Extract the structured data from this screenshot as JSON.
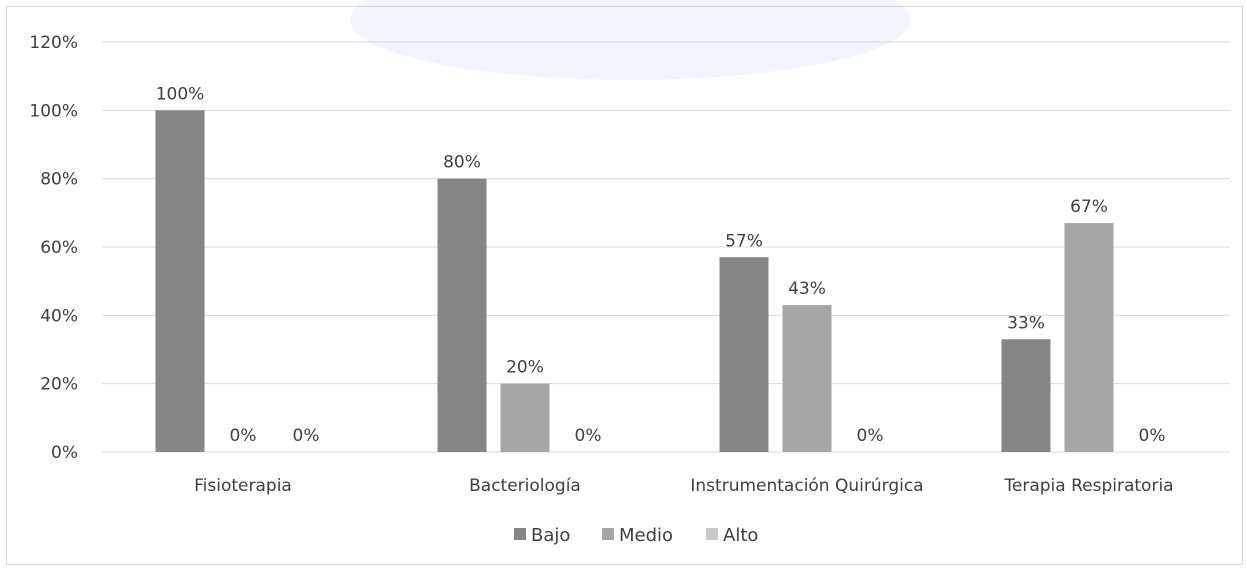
{
  "chart_data": {
    "type": "bar",
    "title": "",
    "xlabel": "",
    "ylabel": "",
    "ylim": [
      0,
      120
    ],
    "y_ticks": [
      "0%",
      "20%",
      "40%",
      "60%",
      "80%",
      "100%",
      "120%"
    ],
    "y_tick_values": [
      0,
      20,
      40,
      60,
      80,
      100,
      120
    ],
    "categories": [
      "Fisioterapia",
      "Bacteriología",
      "Instrumentación Quirúrgica",
      "Terapia Respiratoria"
    ],
    "series": [
      {
        "name": "Bajo",
        "color": "#868686",
        "values": [
          100,
          80,
          57,
          33
        ],
        "labels": [
          "100%",
          "80%",
          "57%",
          "33%"
        ]
      },
      {
        "name": "Medio",
        "color": "#a6a6a6",
        "values": [
          0,
          20,
          43,
          67
        ],
        "labels": [
          "0%",
          "20%",
          "43%",
          "67%"
        ]
      },
      {
        "name": "Alto",
        "color": "#c9c9c9",
        "values": [
          0,
          0,
          0,
          0
        ],
        "labels": [
          "0%",
          "0%",
          "0%",
          "0%"
        ]
      }
    ],
    "grid": true,
    "legend_position": "bottom"
  }
}
